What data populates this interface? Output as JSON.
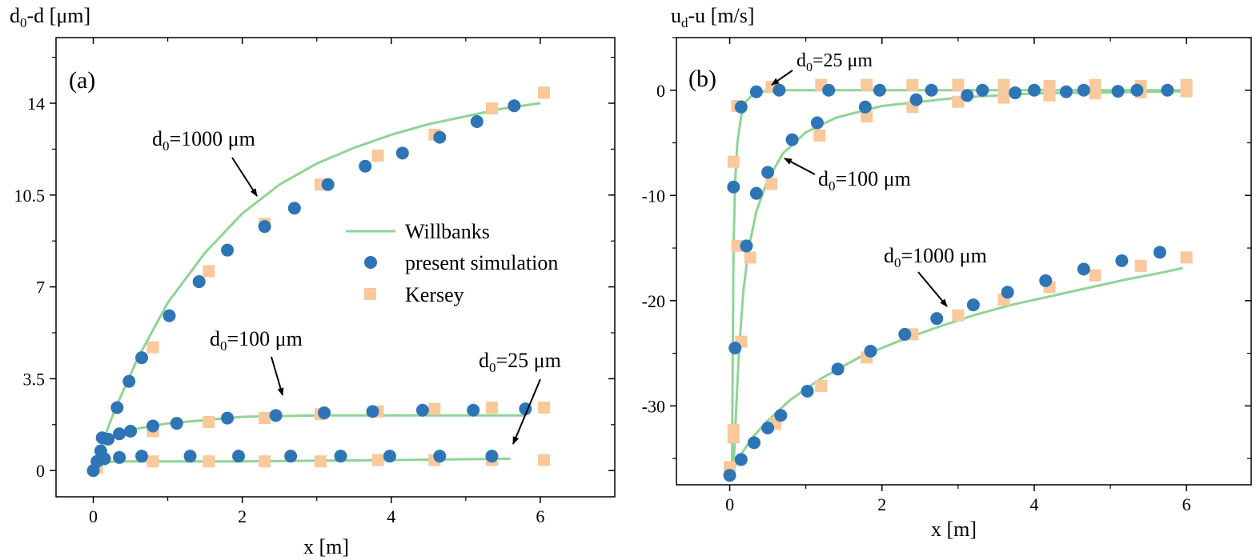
{
  "chart_data": [
    {
      "type": "scatter",
      "panel_label": "(a)",
      "ylabel_main": "d",
      "ylabel_sub": "0",
      "ylabel_rest": "-d [μm]",
      "xlabel": "x [m]",
      "xlim": [
        -0.5,
        7
      ],
      "ylim": [
        -1,
        16.5
      ],
      "xticks": [
        0,
        2,
        4,
        6
      ],
      "yticks": [
        0,
        3.5,
        7,
        10.5,
        14
      ],
      "ytick_labels": [
        "0",
        "3.5",
        "7",
        "10.5",
        "14"
      ],
      "legend": {
        "placement": "center-right",
        "entries": [
          {
            "label": "Willbanks",
            "kind": "line",
            "color": "#90d494"
          },
          {
            "label": "present simulation",
            "kind": "circle",
            "color": "#2e75b6"
          },
          {
            "label": "Kersey",
            "kind": "square",
            "color": "#f9c89b"
          }
        ]
      },
      "annotations": [
        {
          "main": "d",
          "sub": "0",
          "rest": "=1000 μm"
        },
        {
          "main": "d",
          "sub": "0",
          "rest": "=100 μm"
        },
        {
          "main": "d",
          "sub": "0",
          "rest": "=25 μm"
        }
      ],
      "series": [
        {
          "name": "Willbanks",
          "group": "1000",
          "kind": "line",
          "x": [
            0,
            0.1,
            0.3,
            0.6,
            1.0,
            1.5,
            2.0,
            2.5,
            3.0,
            3.5,
            4.0,
            4.5,
            5.0,
            5.5,
            6.0
          ],
          "y": [
            0,
            0.9,
            2.4,
            4.3,
            6.4,
            8.3,
            9.8,
            10.9,
            11.7,
            12.3,
            12.8,
            13.2,
            13.5,
            13.8,
            14.0
          ]
        },
        {
          "name": "Willbanks",
          "group": "100",
          "kind": "line",
          "x": [
            0,
            0.1,
            0.3,
            0.6,
            1.0,
            2.0,
            3.0,
            4.0,
            5.0,
            5.8
          ],
          "y": [
            0,
            0.9,
            1.4,
            1.6,
            1.8,
            2.05,
            2.1,
            2.1,
            2.1,
            2.1
          ]
        },
        {
          "name": "Willbanks",
          "group": "25",
          "kind": "line",
          "x": [
            0,
            0.1,
            0.3,
            0.8,
            2.0,
            4.0,
            5.6
          ],
          "y": [
            0,
            0.3,
            0.35,
            0.35,
            0.35,
            0.4,
            0.45
          ]
        },
        {
          "name": "present simulation",
          "group": "1000",
          "kind": "circle",
          "x": [
            0.0,
            0.1,
            0.32,
            0.48,
            0.65,
            1.02,
            1.42,
            1.8,
            2.3,
            2.7,
            3.15,
            3.65,
            4.15,
            4.65,
            5.15,
            5.65
          ],
          "y": [
            0.0,
            0.75,
            2.4,
            3.4,
            4.3,
            5.9,
            7.2,
            8.4,
            9.3,
            10.0,
            10.9,
            11.6,
            12.1,
            12.7,
            13.3,
            13.9
          ]
        },
        {
          "name": "present simulation",
          "group": "100",
          "kind": "circle",
          "x": [
            0.05,
            0.12,
            0.2,
            0.35,
            0.5,
            0.8,
            1.12,
            1.8,
            2.45,
            3.1,
            3.75,
            4.42,
            5.1,
            5.8
          ],
          "y": [
            0.35,
            1.25,
            1.2,
            1.4,
            1.5,
            1.7,
            1.8,
            2.0,
            2.1,
            2.2,
            2.25,
            2.3,
            2.3,
            2.35
          ]
        },
        {
          "name": "present simulation",
          "group": "25",
          "kind": "circle",
          "x": [
            0.15,
            0.35,
            0.65,
            1.3,
            1.95,
            2.65,
            3.32,
            3.98,
            4.65,
            5.35
          ],
          "y": [
            0.45,
            0.5,
            0.55,
            0.55,
            0.55,
            0.55,
            0.55,
            0.55,
            0.55,
            0.55
          ]
        },
        {
          "name": "Kersey",
          "group": "1000",
          "kind": "square",
          "x": [
            0.8,
            1.55,
            2.3,
            3.05,
            3.82,
            4.58,
            5.35,
            6.05
          ],
          "y": [
            4.7,
            7.6,
            9.4,
            10.9,
            12.0,
            12.8,
            13.8,
            14.4
          ]
        },
        {
          "name": "Kersey",
          "group": "100",
          "kind": "square",
          "x": [
            0.8,
            1.55,
            2.3,
            3.05,
            3.82,
            4.58,
            5.35,
            6.05
          ],
          "y": [
            1.5,
            1.85,
            2.0,
            2.15,
            2.25,
            2.35,
            2.4,
            2.4
          ]
        },
        {
          "name": "Kersey",
          "group": "25",
          "kind": "square",
          "x": [
            0.05,
            0.8,
            1.55,
            2.3,
            3.05,
            3.82,
            4.58,
            5.35,
            6.05
          ],
          "y": [
            0.1,
            0.35,
            0.35,
            0.35,
            0.35,
            0.4,
            0.4,
            0.4,
            0.4
          ]
        }
      ]
    },
    {
      "type": "scatter",
      "panel_label": "(b)",
      "ylabel_main": "u",
      "ylabel_sub": "d",
      "ylabel_rest": "-u  [m/s]",
      "xlabel": "x [m]",
      "xlim": [
        -0.7,
        6.85
      ],
      "ylim": [
        -37.5,
        5
      ],
      "xticks": [
        0,
        2,
        4,
        6
      ],
      "yticks": [
        -30,
        -20,
        -10,
        0
      ],
      "ytick_labels": [
        "-30",
        "-20",
        "-10",
        "0"
      ],
      "annotations": [
        {
          "main": "d",
          "sub": "0",
          "rest": "=25 μm"
        },
        {
          "main": "d",
          "sub": "0",
          "rest": "=100 μm"
        },
        {
          "main": "d",
          "sub": "0",
          "rest": "=1000 μm"
        }
      ],
      "series": [
        {
          "name": "Willbanks",
          "group": "25",
          "kind": "line",
          "x": [
            0.03,
            0.04,
            0.05,
            0.07,
            0.1,
            0.15,
            0.2,
            0.3,
            0.45,
            0.7,
            1.0,
            2.0,
            4.0,
            6.0
          ],
          "y": [
            -36.0,
            -25.0,
            -15.0,
            -9.0,
            -5.0,
            -2.5,
            -1.2,
            -0.4,
            -0.1,
            0,
            0,
            0,
            0,
            0
          ]
        },
        {
          "name": "Willbanks",
          "group": "100",
          "kind": "line",
          "x": [
            0.05,
            0.08,
            0.12,
            0.18,
            0.25,
            0.35,
            0.5,
            0.7,
            1.0,
            1.4,
            2.0,
            3.0,
            4.0,
            6.0
          ],
          "y": [
            -36.0,
            -31.0,
            -25.0,
            -19.0,
            -15.0,
            -11.5,
            -8.5,
            -6.0,
            -4.0,
            -2.6,
            -1.5,
            -0.7,
            -0.3,
            -0.1
          ]
        },
        {
          "name": "Willbanks",
          "group": "1000",
          "kind": "line",
          "x": [
            0.05,
            0.15,
            0.3,
            0.5,
            0.8,
            1.2,
            1.7,
            2.2,
            2.7,
            3.2,
            3.7,
            4.2,
            4.7,
            5.2,
            5.7,
            5.95
          ],
          "y": [
            -36.0,
            -34.6,
            -33.0,
            -31.4,
            -29.4,
            -27.4,
            -25.4,
            -23.9,
            -22.6,
            -21.4,
            -20.4,
            -19.6,
            -18.8,
            -18.0,
            -17.3,
            -16.9
          ]
        },
        {
          "name": "present simulation",
          "group": "25",
          "kind": "circle",
          "x": [
            0.05,
            0.15,
            0.35,
            0.65,
            1.3,
            1.97,
            2.65,
            3.32,
            4.0,
            4.65,
            5.35,
            5.75
          ],
          "y": [
            -9.2,
            -1.6,
            -0.15,
            0.0,
            0.0,
            0.0,
            0.0,
            0.0,
            0.0,
            0.0,
            0.0,
            0.0
          ]
        },
        {
          "name": "present simulation",
          "group": "100",
          "kind": "circle",
          "x": [
            0.07,
            0.22,
            0.35,
            0.5,
            0.82,
            1.15,
            1.78,
            2.45,
            3.12,
            3.75,
            4.42,
            5.1
          ],
          "y": [
            -24.5,
            -14.8,
            -9.8,
            -7.8,
            -4.7,
            -3.1,
            -1.6,
            -0.9,
            -0.5,
            -0.25,
            -0.15,
            -0.1
          ]
        },
        {
          "name": "present simulation",
          "group": "1000",
          "kind": "circle",
          "x": [
            0.0,
            0.15,
            0.32,
            0.5,
            0.67,
            1.02,
            1.42,
            1.85,
            2.3,
            2.72,
            3.2,
            3.65,
            4.15,
            4.65,
            5.15,
            5.65
          ],
          "y": [
            -36.6,
            -35.1,
            -33.5,
            -32.1,
            -30.9,
            -28.6,
            -26.5,
            -24.8,
            -23.2,
            -21.7,
            -20.4,
            -19.2,
            -18.1,
            -17.0,
            -16.2,
            -15.4
          ]
        },
        {
          "name": "Kersey",
          "group": "25",
          "kind": "square",
          "x": [
            0.05,
            0.1,
            0.55,
            1.2,
            1.8,
            2.4,
            3.0,
            3.6,
            4.2,
            4.8,
            5.4,
            6.0
          ],
          "y": [
            -6.8,
            -1.5,
            0.3,
            0.5,
            0.5,
            0.5,
            0.5,
            0.5,
            0.4,
            0.5,
            0.4,
            0.5
          ]
        },
        {
          "name": "Kersey",
          "group": "100",
          "kind": "square",
          "x": [
            0.05,
            0.1,
            0.15,
            0.27,
            0.55,
            1.18,
            1.8,
            2.4,
            3.0,
            3.6,
            4.2,
            4.8,
            5.4,
            6.0
          ],
          "y": [
            -33.0,
            -14.8,
            -23.9,
            -15.9,
            -8.9,
            -4.3,
            -2.5,
            -1.6,
            -1.1,
            -0.7,
            -0.5,
            -0.3,
            -0.2,
            -0.1
          ]
        },
        {
          "name": "Kersey",
          "group": "1000",
          "kind": "square",
          "x": [
            0.0,
            0.05,
            0.6,
            1.2,
            1.8,
            2.4,
            3.0,
            3.6,
            4.2,
            4.8,
            5.4,
            6.0
          ],
          "y": [
            -35.8,
            -32.3,
            -31.7,
            -28.1,
            -25.4,
            -23.2,
            -21.4,
            -19.9,
            -18.7,
            -17.6,
            -16.7,
            -15.9
          ]
        }
      ]
    }
  ]
}
